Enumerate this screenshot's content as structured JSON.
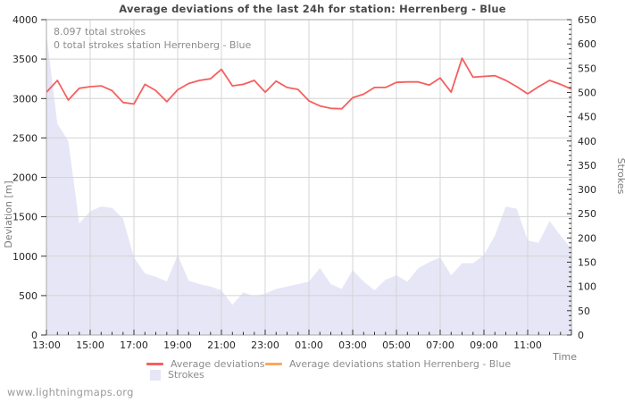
{
  "title": "Average deviations of the last 24h for station: Herrenberg - Blue",
  "annotations": {
    "total_strokes": "8.097 total strokes",
    "station_strokes": "0 total strokes station Herrenberg - Blue"
  },
  "watermark": "www.lightningmaps.org",
  "legend": {
    "items": [
      {
        "label": "Average deviations",
        "swatch": "line",
        "color": "#f55f5f"
      },
      {
        "label": "Average deviations station Herrenberg - Blue",
        "swatch": "line",
        "color": "#fba85c"
      },
      {
        "label": "Strokes",
        "swatch": "area",
        "color": "#e6e6f7"
      }
    ]
  },
  "colors": {
    "deviation_line": "#f55f5f",
    "station_line": "#fba85c",
    "strokes_fill": "#e6e6f7",
    "grid": "#d4d4d4",
    "frame": "#aaaaaa",
    "tick": "#333333",
    "tick_label": "#262626",
    "axis_title": "#7a7a7a"
  },
  "chart_data": {
    "type": "line",
    "x": [
      "13:00",
      "13:30",
      "14:00",
      "14:30",
      "15:00",
      "15:30",
      "16:00",
      "16:30",
      "17:00",
      "17:30",
      "18:00",
      "18:30",
      "19:00",
      "19:30",
      "20:00",
      "20:30",
      "21:00",
      "21:30",
      "22:00",
      "22:30",
      "23:00",
      "23:30",
      "00:00",
      "00:30",
      "01:00",
      "01:30",
      "02:00",
      "02:30",
      "03:00",
      "03:30",
      "04:00",
      "04:30",
      "05:00",
      "05:30",
      "06:00",
      "06:30",
      "07:00",
      "07:30",
      "08:00",
      "08:30",
      "09:00",
      "09:30",
      "10:00",
      "10:30",
      "11:00",
      "11:30",
      "12:00",
      "12:30",
      "13:00"
    ],
    "series": [
      {
        "name": "Average deviations",
        "type": "line",
        "axis": "left",
        "color": "#f55f5f",
        "values": [
          3080,
          3230,
          2980,
          3130,
          3150,
          3160,
          3100,
          2950,
          2930,
          3180,
          3100,
          2960,
          3110,
          3190,
          3230,
          3250,
          3370,
          3160,
          3180,
          3230,
          3080,
          3220,
          3140,
          3115,
          2970,
          2905,
          2875,
          2870,
          3010,
          3055,
          3140,
          3140,
          3205,
          3210,
          3210,
          3170,
          3260,
          3080,
          3510,
          3270,
          3280,
          3290,
          3230,
          3150,
          3060,
          3150,
          3230,
          3180,
          3120
        ]
      },
      {
        "name": "Average deviations station Herrenberg - Blue",
        "type": "line",
        "axis": "left",
        "color": "#fba85c",
        "values": []
      },
      {
        "name": "Strokes",
        "type": "area",
        "axis": "right",
        "color": "#e6e6f7",
        "values": [
          620,
          435,
          400,
          230,
          255,
          265,
          262,
          240,
          160,
          127,
          120,
          110,
          165,
          112,
          105,
          100,
          92,
          62,
          88,
          80,
          85,
          95,
          100,
          105,
          110,
          138,
          105,
          95,
          134,
          110,
          92,
          114,
          123,
          110,
          138,
          150,
          160,
          123,
          148,
          148,
          165,
          205,
          265,
          260,
          195,
          190,
          235,
          205,
          178
        ]
      }
    ],
    "left_axis": {
      "label": "Deviation [m]",
      "min": 0,
      "max": 4000,
      "step": 500,
      "ticks": [
        0,
        500,
        1000,
        1500,
        2000,
        2500,
        3000,
        3500,
        4000
      ]
    },
    "right_axis": {
      "label": "Strokes",
      "min": 0,
      "max": 650,
      "step": 50,
      "minor_step": 10,
      "ticks": [
        0,
        50,
        100,
        150,
        200,
        250,
        300,
        350,
        400,
        450,
        500,
        550,
        600,
        650
      ]
    },
    "x_axis": {
      "label": "Time",
      "major_every_points": 4,
      "tick_labels": [
        "13:00",
        "15:00",
        "17:00",
        "19:00",
        "21:00",
        "23:00",
        "01:00",
        "03:00",
        "05:00",
        "07:00",
        "09:00",
        "11:00"
      ]
    },
    "grid": true,
    "legend_position": "bottom"
  }
}
